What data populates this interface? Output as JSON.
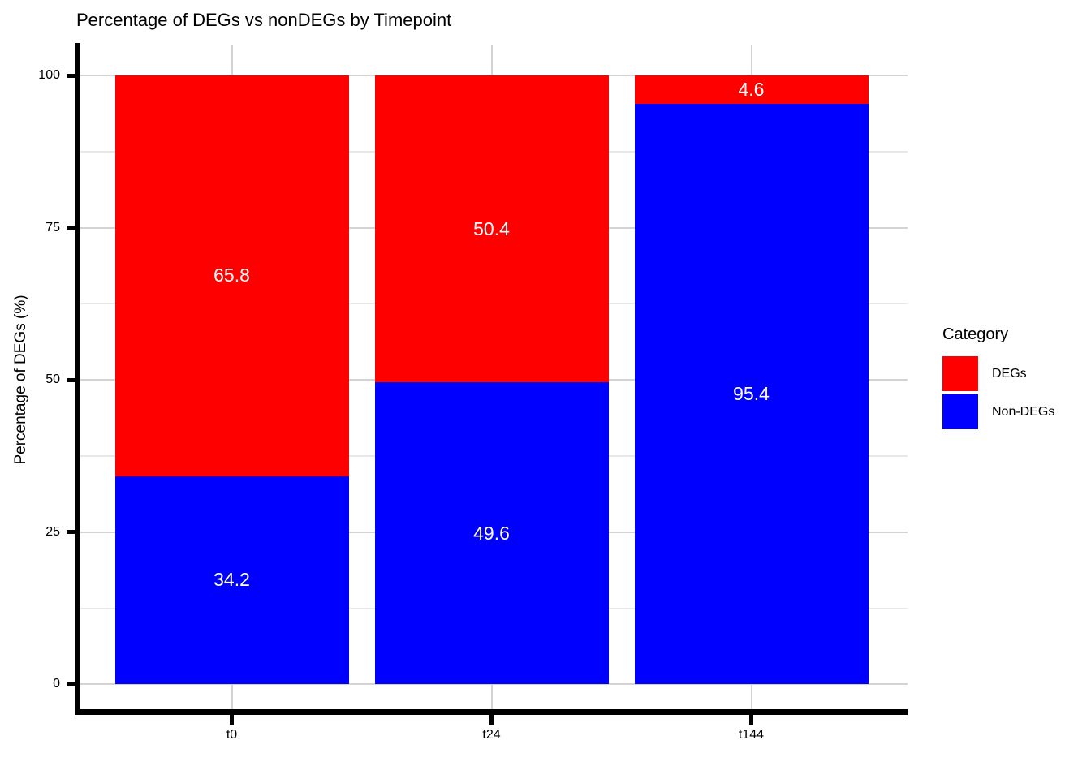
{
  "title": "Percentage of DEGs vs nonDEGs by Timepoint",
  "y_axis": {
    "label": "Percentage of DEGs (%)",
    "tick_labels": [
      "0",
      "25",
      "50",
      "75",
      "100"
    ],
    "tick_values": [
      0,
      25,
      50,
      75,
      100
    ]
  },
  "x_axis": {
    "tick_labels": [
      "t0",
      "t24",
      "t144"
    ]
  },
  "legend": {
    "title": "Category",
    "items": [
      {
        "label": "DEGs",
        "color": "#FF0000"
      },
      {
        "label": "Non-DEGs",
        "color": "#0000FF"
      }
    ]
  },
  "chart_data": {
    "type": "bar",
    "stacked": true,
    "title": "Percentage of DEGs vs nonDEGs by Timepoint",
    "xlabel": "",
    "ylabel": "Percentage of DEGs (%)",
    "ylim": [
      0,
      100
    ],
    "yticks": [
      0,
      25,
      50,
      75,
      100
    ],
    "grid": true,
    "legend_position": "right",
    "legend_title": "Category",
    "categories": [
      "t0",
      "t24",
      "t144"
    ],
    "series": [
      {
        "name": "DEGs",
        "color": "#FF0000",
        "values": [
          65.8,
          50.4,
          4.6
        ],
        "labels": [
          "65.8",
          "50.4",
          "4.6"
        ]
      },
      {
        "name": "Non-DEGs",
        "color": "#0000FF",
        "values": [
          34.2,
          49.6,
          95.4
        ],
        "labels": [
          "34.2",
          "49.6",
          "95.4"
        ]
      }
    ],
    "bar_label_color": "#FFFFFF",
    "colors": {
      "grid_major": "#D3D3D3",
      "grid_minor": "#E8E8E8",
      "axis": "#000000",
      "text": "#000000",
      "background": "#FFFFFF"
    }
  }
}
